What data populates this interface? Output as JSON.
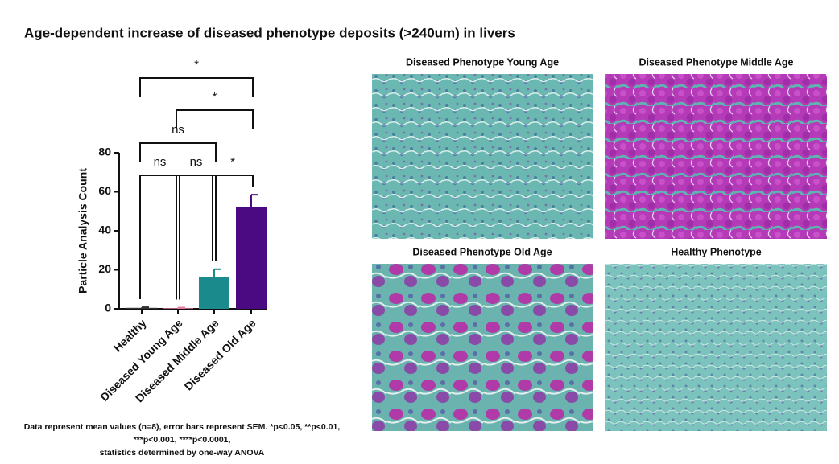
{
  "chart_data": {
    "type": "bar",
    "title": "Age-dependent increase of diseased phenotype deposits (>240um) in livers",
    "y_label": "Particle Analysis Count",
    "categories": [
      "Healthy",
      "Diseased Young Age",
      "Diseased Middle Age",
      "Diseased Old Age"
    ],
    "values": [
      0.5,
      0.3,
      16.5,
      52
    ],
    "errors": [
      0.3,
      0.3,
      3.8,
      6.5
    ],
    "colors": [
      "#333333",
      "#e8789c",
      "#1b8a8c",
      "#4b0a82"
    ],
    "ylim": [
      0,
      80
    ],
    "yticks": [
      0,
      20,
      40,
      60,
      80
    ],
    "annotations": [
      "ns",
      "ns",
      "*",
      "ns",
      "*",
      "*"
    ],
    "footnote": [
      "Data represent mean values (n=8), error bars represent SEM. *p<0.05, **p<0.01,",
      "***p<0.001, ****p<0.0001,",
      "statistics determined by one-way ANOVA"
    ]
  },
  "panels": [
    {
      "title": "Diseased Phenotype Young Age"
    },
    {
      "title": "Diseased Phenotype Middle Age"
    },
    {
      "title": "Diseased Phenotype Old Age"
    },
    {
      "title": "Healthy Phenotype"
    }
  ]
}
